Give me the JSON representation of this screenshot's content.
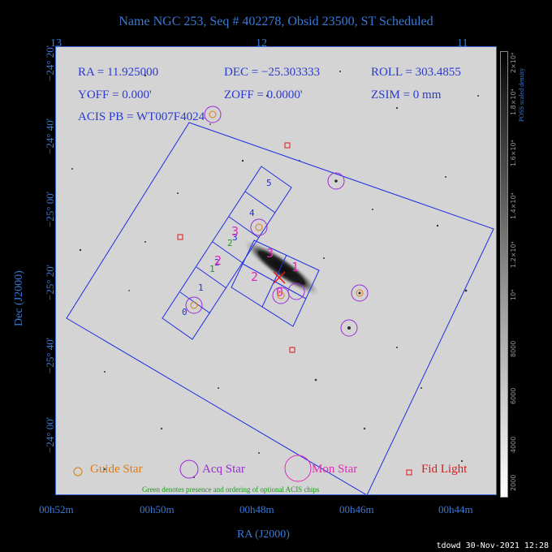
{
  "title": "Name NGC 253, Seq # 402278, Obsid 23500, ST Scheduled",
  "info": {
    "ra": "RA = 11.925000",
    "dec": "DEC = −25.303333",
    "roll": "ROLL = 303.4855",
    "yoff": "YOFF =   0.000'",
    "zoff": "ZOFF =  0.0000'",
    "zsim": "ZSIM = 0 mm",
    "acis_pb": "ACIS PB = WT007F4024"
  },
  "axes": {
    "xlabel": "RA (J2000)",
    "ylabel": "Dec (J2000)",
    "top_ticks": [
      "13",
      "12",
      "11"
    ],
    "bottom_ticks": [
      "00h52m",
      "00h50m",
      "00h48m",
      "00h46m",
      "00h44m"
    ],
    "left_ticks": [
      "−24° 20'",
      "−24° 40'",
      "−25° 00'",
      "−25° 20'",
      "−25° 40'",
      "−24° 00'"
    ]
  },
  "colorbar": {
    "label": "POSS scaled density",
    "ticks": [
      "2000",
      "4000",
      "6000",
      "8000",
      "10⁴",
      "1.2×10⁴",
      "1.4×10⁴",
      "1.6×10⁴",
      "1.8×10⁴",
      "2×10⁴"
    ]
  },
  "chips": {
    "left": [
      "0",
      "1",
      "2",
      "3",
      "4",
      "5"
    ],
    "optional_left": [
      "1",
      "2"
    ],
    "center": [
      "2",
      "3",
      "1",
      "0"
    ]
  },
  "legend": {
    "guide": "Guide Star",
    "acq": "Acq Star",
    "mon": "Mon Star",
    "fid": "Fid Light",
    "note": "Green denotes presence and ordering of optional ACIS chips"
  },
  "colors": {
    "axis": "#3a7ad6",
    "field": "#1f2ee0",
    "guide": "#e07a10",
    "acq": "#9a2ad6",
    "mon": "#e02ab8",
    "fid": "#e01818",
    "optional": "#1a9a1a"
  },
  "footer": "tdowd 30-Nov-2021 12:28"
}
